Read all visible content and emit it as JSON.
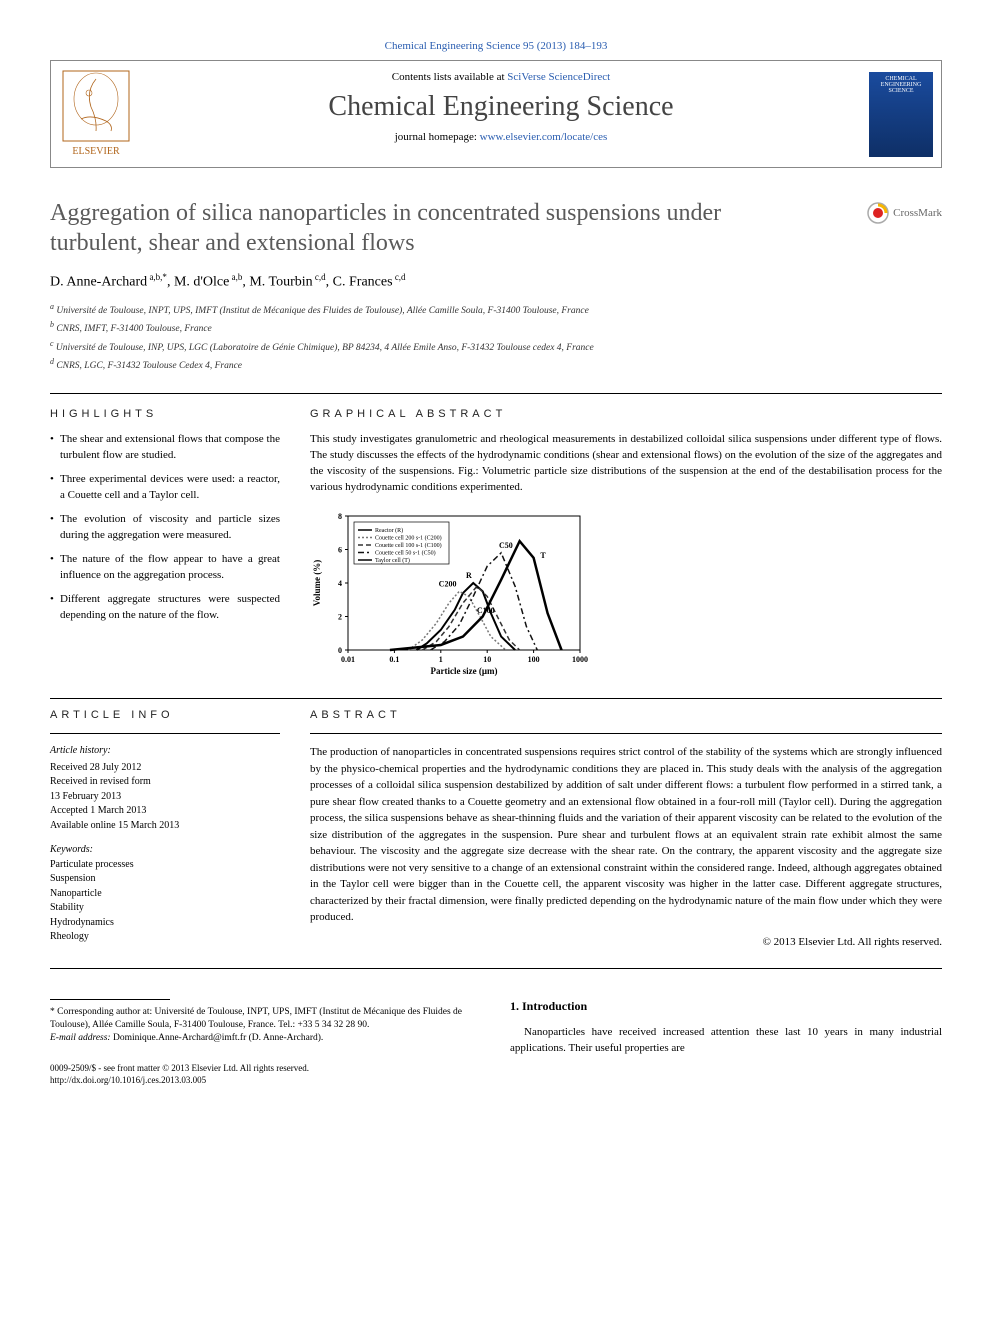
{
  "top_link": "Chemical Engineering Science 95 (2013) 184–193",
  "header": {
    "contents_prefix": "Contents lists available at ",
    "contents_link": "SciVerse ScienceDirect",
    "journal_title": "Chemical Engineering Science",
    "homepage_prefix": "journal homepage: ",
    "homepage_link": "www.elsevier.com/locate/ces",
    "publisher": "ELSEVIER",
    "cover_text": "CHEMICAL ENGINEERING SCIENCE"
  },
  "crossmark": "CrossMark",
  "article": {
    "title": "Aggregation of silica nanoparticles in concentrated suspensions under turbulent, shear and extensional flows",
    "authors_html": "D. Anne-Archard",
    "authors": [
      {
        "name": "D. Anne-Archard",
        "sup": "a,b,*"
      },
      {
        "name": "M. d'Olce",
        "sup": "a,b"
      },
      {
        "name": "M. Tourbin",
        "sup": "c,d"
      },
      {
        "name": "C. Frances",
        "sup": "c,d"
      }
    ],
    "affiliations": [
      "a Université de Toulouse, INPT, UPS, IMFT (Institut de Mécanique des Fluides de Toulouse), Allée Camille Soula, F-31400 Toulouse, France",
      "b CNRS, IMFT, F-31400 Toulouse, France",
      "c Université de Toulouse, INP, UPS, LGC (Laboratoire de Génie Chimique), BP 84234, 4 Allée Emile Anso, F-31432 Toulouse cedex 4, France",
      "d CNRS, LGC, F-31432 Toulouse Cedex 4, France"
    ]
  },
  "highlights": {
    "label": "HIGHLIGHTS",
    "items": [
      "The shear and extensional flows that compose the turbulent flow are studied.",
      "Three experimental devices were used: a reactor, a Couette cell and a Taylor cell.",
      "The evolution of viscosity and particle sizes during the aggregation were measured.",
      "The nature of the flow appear to have a great influence on the aggregation process.",
      "Different aggregate structures were suspected depending on the nature of the flow."
    ]
  },
  "graphical": {
    "label": "GRAPHICAL ABSTRACT",
    "text": "This study investigates granulometric and rheological measurements in destabilized colloidal silica suspensions under different type of flows. The study discusses the effects of the hydrodynamic conditions (shear and extensional flows) on the evolution of the size of the aggregates and the viscosity of the suspensions. Fig.: Volumetric particle size distributions of the suspension at the end of the destabilisation process for the various hydrodynamic conditions experimented."
  },
  "chart": {
    "type": "line",
    "xlabel": "Particle size (μm)",
    "ylabel": "Volume (%)",
    "xscale": "log",
    "xlim": [
      0.01,
      1000
    ],
    "xticks": [
      "0.01",
      "0.1",
      "1",
      "10",
      "100",
      "1000"
    ],
    "ylim": [
      0,
      8
    ],
    "yticks": [
      0,
      2,
      4,
      6,
      8
    ],
    "background_color": "#ffffff",
    "axis_color": "#000000",
    "label_fontsize": 9,
    "tick_fontsize": 8,
    "legend_fontsize": 7,
    "legend_items": [
      "Reactor (R)",
      "Couette cell 200 s-1 (C200)",
      "Couette cell 100 s-1 (C100)",
      "Couette cell 50 s-1 (C50)",
      "Taylor cell (T)"
    ],
    "annotations": [
      "C200",
      "R",
      "C100",
      "C50",
      "T"
    ],
    "series": [
      {
        "name": "R",
        "color": "#000000",
        "style": "solid",
        "width": 2,
        "x": [
          0.3,
          0.5,
          1,
          2,
          3,
          5,
          8,
          12,
          20,
          40
        ],
        "y": [
          0,
          0.4,
          1.2,
          2.4,
          3.4,
          4.0,
          3.5,
          2.2,
          0.8,
          0
        ]
      },
      {
        "name": "C200",
        "color": "#777777",
        "style": "dotted",
        "width": 1.5,
        "x": [
          0.2,
          0.4,
          0.8,
          1.5,
          2.5,
          4,
          7,
          12,
          25
        ],
        "y": [
          0,
          0.6,
          1.6,
          2.8,
          3.5,
          3.2,
          2.0,
          0.8,
          0
        ]
      },
      {
        "name": "C100",
        "color": "#333333",
        "style": "dashed",
        "width": 1.5,
        "x": [
          0.4,
          0.8,
          1.5,
          3,
          6,
          10,
          18,
          30,
          50
        ],
        "y": [
          0,
          0.5,
          1.4,
          2.8,
          3.8,
          3.2,
          1.8,
          0.6,
          0
        ]
      },
      {
        "name": "C50",
        "color": "#111111",
        "style": "dashdot",
        "width": 1.5,
        "x": [
          0.6,
          1.2,
          2.5,
          5,
          10,
          20,
          40,
          70,
          120
        ],
        "y": [
          0,
          0.5,
          1.5,
          3.2,
          5.0,
          5.8,
          3.8,
          1.4,
          0
        ]
      },
      {
        "name": "T",
        "color": "#000000",
        "style": "solid_thick",
        "width": 2.5,
        "x": [
          0.08,
          1,
          3,
          8,
          20,
          50,
          100,
          200,
          400
        ],
        "y": [
          0,
          0.3,
          0.8,
          2.0,
          4.2,
          6.5,
          5.5,
          2.2,
          0
        ]
      }
    ]
  },
  "article_info": {
    "label": "ARTICLE INFO",
    "history_hdr": "Article history:",
    "dates": [
      "Received 28 July 2012",
      "Received in revised form",
      "13 February 2013",
      "Accepted 1 March 2013",
      "Available online 15 March 2013"
    ],
    "keywords_hdr": "Keywords:",
    "keywords": [
      "Particulate processes",
      "Suspension",
      "Nanoparticle",
      "Stability",
      "Hydrodynamics",
      "Rheology"
    ]
  },
  "abstract": {
    "label": "ABSTRACT",
    "text": "The production of nanoparticles in concentrated suspensions requires strict control of the stability of the systems which are strongly influenced by the physico-chemical properties and the hydrodynamic conditions they are placed in. This study deals with the analysis of the aggregation processes of a colloidal silica suspension destabilized by addition of salt under different flows: a turbulent flow performed in a stirred tank, a pure shear flow created thanks to a Couette geometry and an extensional flow obtained in a four-roll mill (Taylor cell). During the aggregation process, the silica suspensions behave as shear-thinning fluids and the variation of their apparent viscosity can be related to the evolution of the size distribution of the aggregates in the suspension. Pure shear and turbulent flows at an equivalent strain rate exhibit almost the same behaviour. The viscosity and the aggregate size decrease with the shear rate. On the contrary, the apparent viscosity and the aggregate size distributions were not very sensitive to a change of an extensional constraint within the considered range. Indeed, although aggregates obtained in the Taylor cell were bigger than in the Couette cell, the apparent viscosity was higher in the latter case. Different aggregate structures, characterized by their fractal dimension, were finally predicted depending on the hydrodynamic nature of the main flow under which they were produced.",
    "copyright": "© 2013 Elsevier Ltd. All rights reserved."
  },
  "footer": {
    "corresponding": "* Corresponding author at: Université de Toulouse, INPT, UPS, IMFT (Institut de Mécanique des Fluides de Toulouse), Allée Camille Soula, F-31400 Toulouse, France. Tel.: +33 5 34 32 28 90.",
    "email_label": "E-mail address: ",
    "email": "Dominique.Anne-Archard@imft.fr (D. Anne-Archard).",
    "issn": "0009-2509/$ - see front matter © 2013 Elsevier Ltd. All rights reserved.",
    "doi": "http://dx.doi.org/10.1016/j.ces.2013.03.005"
  },
  "intro": {
    "heading": "1.  Introduction",
    "text": "Nanoparticles have received increased attention these last 10 years in many industrial applications. Their useful properties are"
  }
}
